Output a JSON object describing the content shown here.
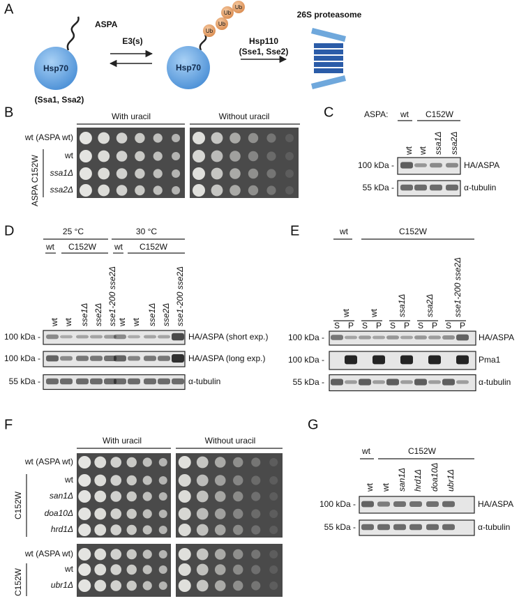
{
  "panel_a": {
    "label": "A",
    "aspa": "ASPA",
    "hsp70_left": "Hsp70",
    "chaperones": "(Ssa1, Ssa2)",
    "e3": "E3(s)",
    "hsp70_right": "Hsp70",
    "ub": [
      "Ub",
      "Ub",
      "Ub",
      "Ub"
    ],
    "hsp110": "Hsp110",
    "hsp110_members": "(Sse1, Sse2)",
    "proteasome": "26S proteasome"
  },
  "panel_b": {
    "label": "B",
    "headers": [
      "With uracil",
      "Without uracil"
    ],
    "rows": [
      "wt (ASPA wt)",
      "wt",
      "ssa1Δ",
      "ssa2Δ"
    ],
    "group": "ASPA C152W"
  },
  "panel_c": {
    "label": "C",
    "aspa": "ASPA:",
    "groups": [
      "wt",
      "C152W"
    ],
    "lanes": [
      "wt",
      "wt",
      "ssa1Δ",
      "ssa2Δ"
    ],
    "blots": [
      {
        "marker": "100 kDa -",
        "name": "HA/ASPA"
      },
      {
        "marker": "55 kDa -",
        "name": "α-tubulin"
      }
    ]
  },
  "panel_d": {
    "label": "D",
    "temperatures": [
      "25 °C",
      "30 °C"
    ],
    "groups": [
      "wt",
      "C152W",
      "wt",
      "C152W"
    ],
    "lanes": [
      "wt",
      "wt",
      "sse1Δ",
      "sse2Δ",
      "sse1-200 sse2Δ",
      "wt",
      "wt",
      "sse1Δ",
      "sse2Δ",
      "sse1-200 sse2Δ"
    ],
    "blots": [
      {
        "marker": "100 kDa -",
        "name": "HA/ASPA (short exp.)"
      },
      {
        "marker": "100 kDa -",
        "name": "HA/ASPA (long exp.)"
      },
      {
        "marker": "55 kDa -",
        "name": "α-tubulin"
      }
    ]
  },
  "panel_e": {
    "label": "E",
    "groups": [
      "wt",
      "C152W"
    ],
    "lanes": [
      "wt",
      "wt",
      "ssa1Δ",
      "ssa2Δ",
      "sse1-200 sse2Δ"
    ],
    "fractions": [
      "S",
      "P",
      "S",
      "P",
      "S",
      "P",
      "S",
      "P",
      "S",
      "P"
    ],
    "blots": [
      {
        "marker": "100 kDa -",
        "name": "HA/ASPA"
      },
      {
        "marker": "100 kDa -",
        "name": "Pma1"
      },
      {
        "marker": "55 kDa -",
        "name": "α-tubulin"
      }
    ]
  },
  "panel_f": {
    "label": "F",
    "headers": [
      "With uracil",
      "Without uracil"
    ],
    "top_rows": [
      "wt (ASPA wt)",
      "wt",
      "san1Δ",
      "doa10Δ",
      "hrd1Δ"
    ],
    "top_group": "C152W",
    "bottom_rows": [
      "wt (ASPA wt)",
      "wt",
      "ubr1Δ"
    ],
    "bottom_group": "C152W"
  },
  "panel_g": {
    "label": "G",
    "groups": [
      "wt",
      "C152W"
    ],
    "lanes": [
      "wt",
      "wt",
      "san1Δ",
      "hrd1Δ",
      "doa10Δ",
      "ubr1Δ"
    ],
    "blots": [
      {
        "marker": "100 kDa -",
        "name": "HA/ASPA"
      },
      {
        "marker": "55 kDa -",
        "name": "α-tubulin"
      }
    ]
  }
}
